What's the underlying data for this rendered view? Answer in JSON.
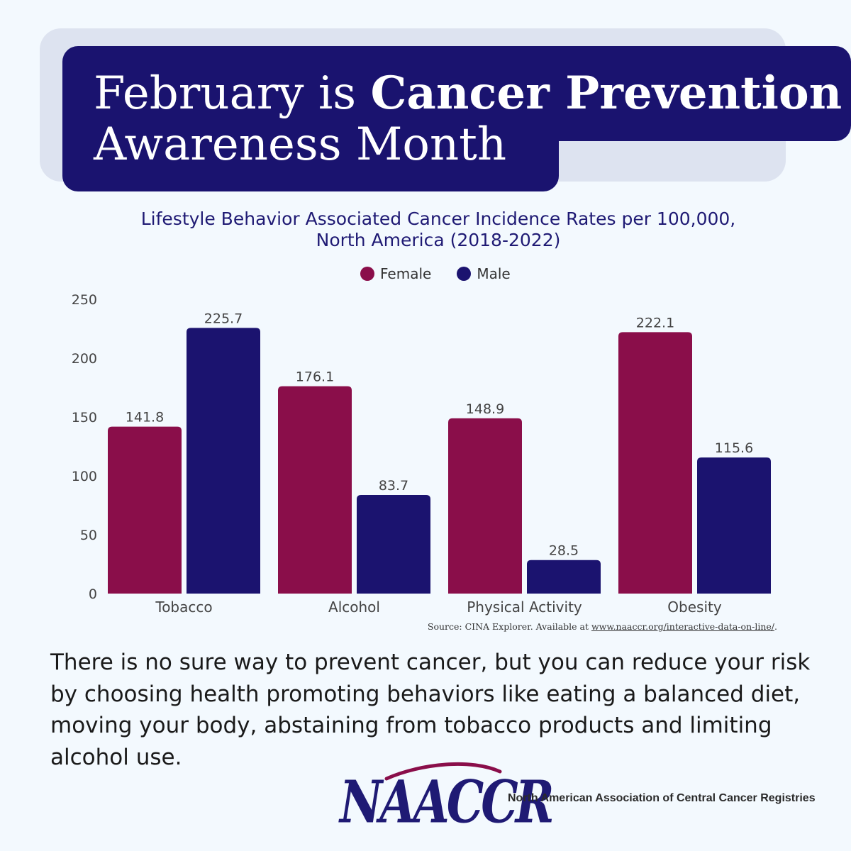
{
  "header": {
    "line1_plain": "February is ",
    "line1_bold": "Cancer Prevention",
    "line2": "Awareness Month"
  },
  "chart_data": {
    "type": "bar",
    "title": "Lifestyle Behavior Associated Cancer Incidence Rates per 100,000, North America (2018-2022)",
    "title_line1": "Lifestyle Behavior Associated Cancer Incidence Rates per 100,000,",
    "title_line2": "North America (2018-2022)",
    "categories": [
      "Tobacco",
      "Alcohol",
      "Physical Activity",
      "Obesity"
    ],
    "series": [
      {
        "name": "Female",
        "color": "#8a0e4a",
        "values": [
          141.8,
          176.1,
          148.9,
          222.1
        ]
      },
      {
        "name": "Male",
        "color": "#1b136f",
        "values": [
          225.7,
          83.7,
          28.5,
          115.6
        ]
      }
    ],
    "ylim": [
      0,
      250
    ],
    "yticks": [
      0,
      50,
      100,
      150,
      200,
      250
    ],
    "legend_position": "top-center",
    "grid": false,
    "data_labels": true
  },
  "source": {
    "prefix": "Source: CINA Explorer. Available at ",
    "link": "www.naaccr.org/interactive-data-on-line/",
    "suffix": "."
  },
  "body_text": "There is no sure way to prevent cancer, but you can reduce your risk by choosing health promoting behaviors like eating a balanced diet, moving your body, abstaining from tobacco products and limiting alcohol use.",
  "footer": {
    "logo_text": "NAACCR",
    "org_name": "North American Association of Central Cancer Registries"
  }
}
